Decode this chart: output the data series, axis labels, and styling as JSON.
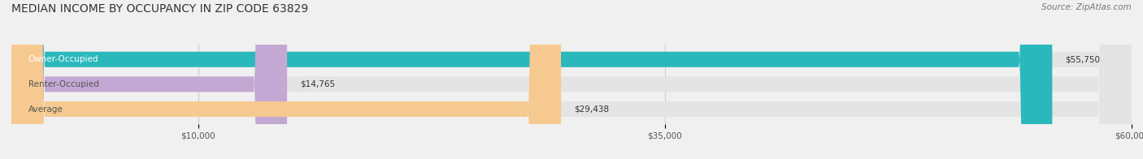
{
  "title": "MEDIAN INCOME BY OCCUPANCY IN ZIP CODE 63829",
  "source": "Source: ZipAtlas.com",
  "categories": [
    "Owner-Occupied",
    "Renter-Occupied",
    "Average"
  ],
  "values": [
    55750,
    14765,
    29438
  ],
  "bar_colors": [
    "#2ab8bc",
    "#c4a8d4",
    "#f5c990"
  ],
  "label_color_owner": "#ffffff",
  "label_color_others": "#555555",
  "value_labels": [
    "$55,750",
    "$14,765",
    "$29,438"
  ],
  "xlim": [
    0,
    60000
  ],
  "xticks": [
    10000,
    35000,
    60000
  ],
  "xtick_labels": [
    "$10,000",
    "$35,000",
    "$60,000"
  ],
  "background_color": "#f0f0f0",
  "bar_background_color": "#e4e4e4",
  "title_fontsize": 10,
  "source_fontsize": 7.5,
  "label_fontsize": 7.5,
  "value_fontsize": 7.5,
  "tick_fontsize": 7.5
}
